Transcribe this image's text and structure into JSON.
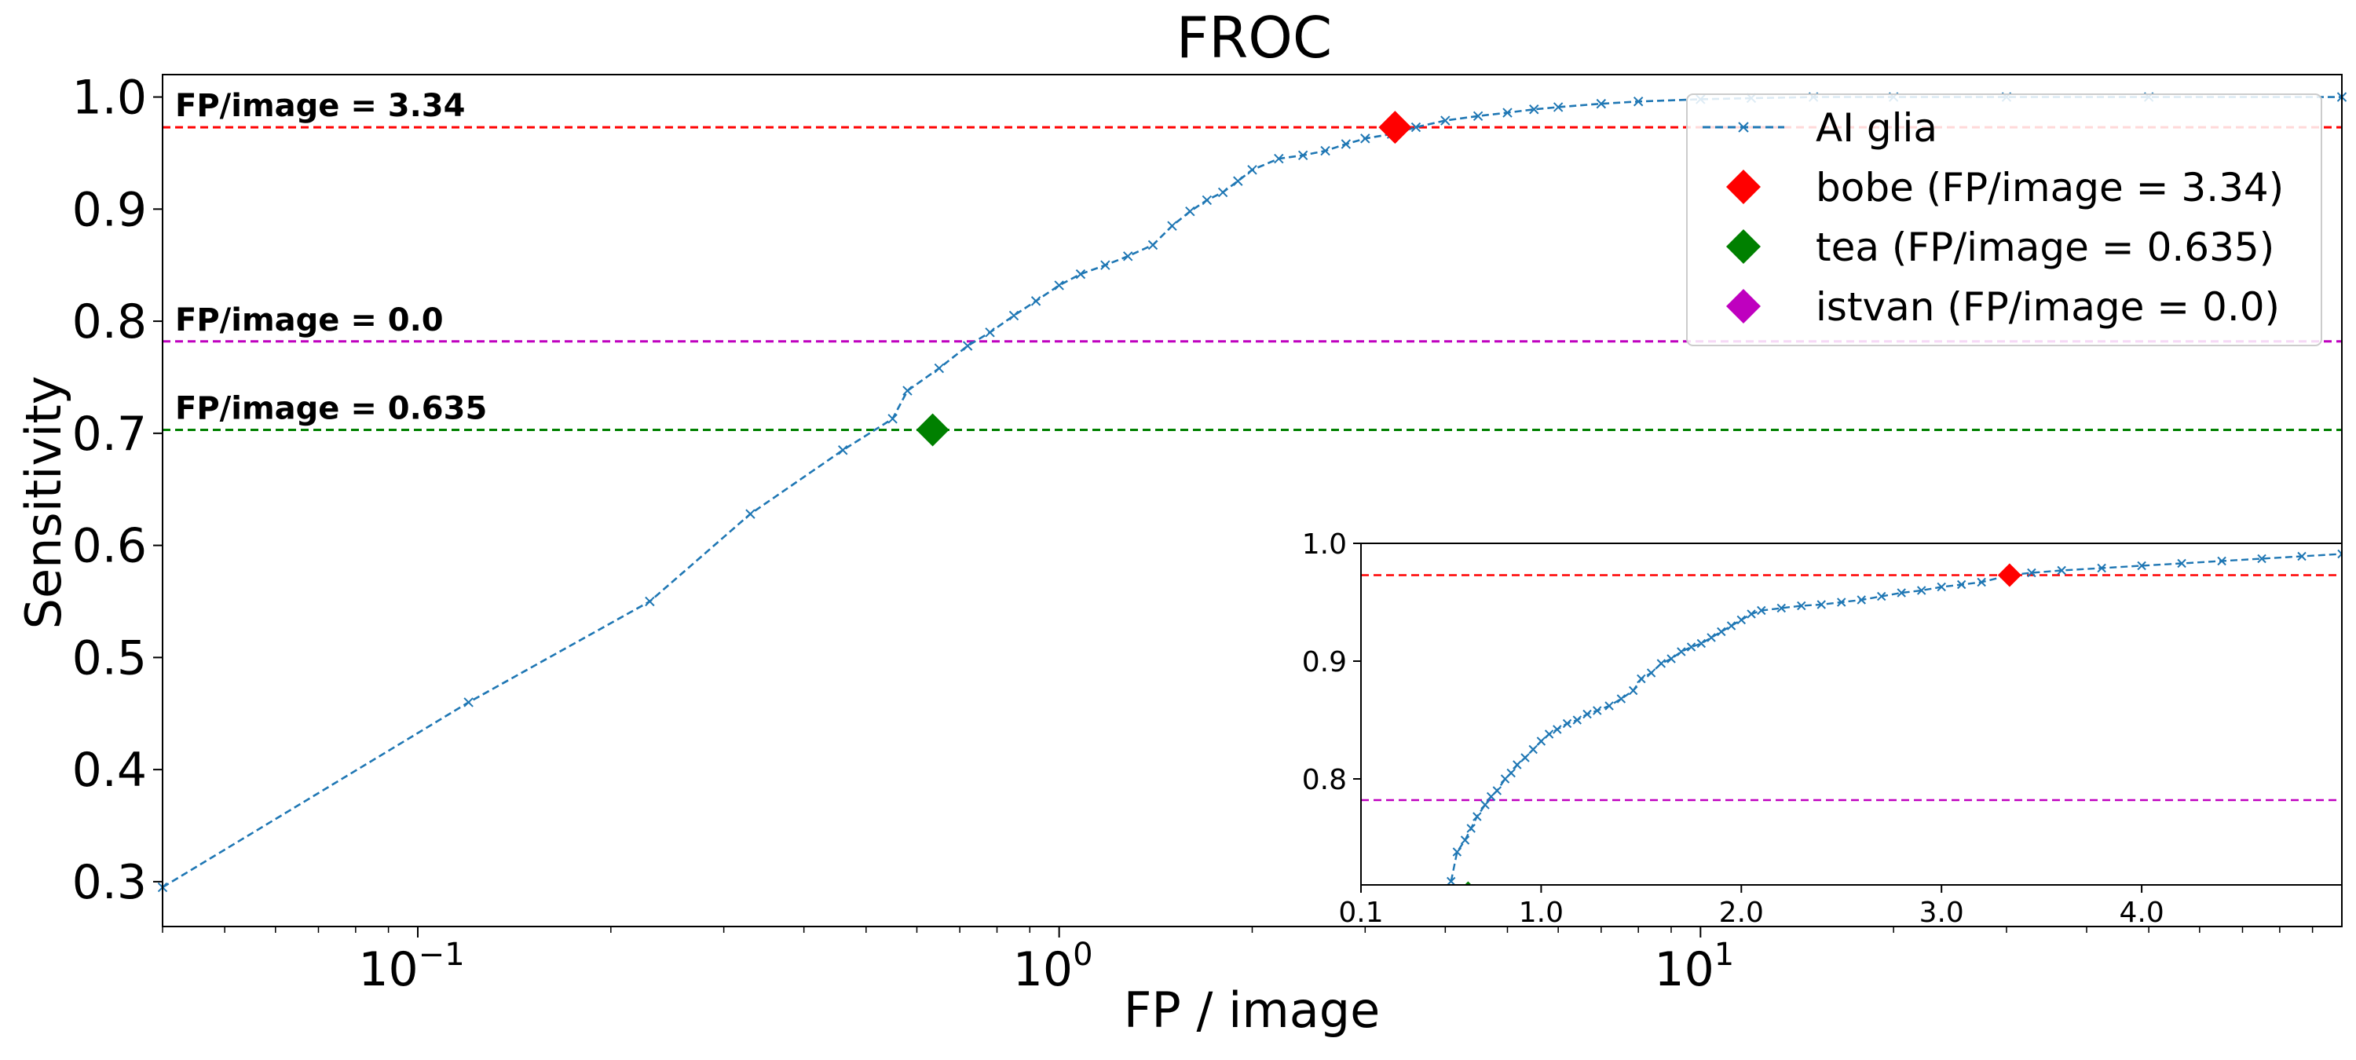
{
  "chart_data": [
    {
      "type": "line",
      "title": "FROC",
      "xlabel": "FP / image",
      "ylabel": "Sensitivity",
      "xscale": "log",
      "xlim": [
        0.04,
        100
      ],
      "ylim": [
        0.26,
        1.02
      ],
      "xticks": [
        {
          "value": 0.1,
          "base": "10",
          "exp": "−1"
        },
        {
          "value": 1,
          "base": "10",
          "exp": "0"
        },
        {
          "value": 10,
          "base": "10",
          "exp": "1"
        }
      ],
      "yticks": [
        0.3,
        0.4,
        0.5,
        0.6,
        0.7,
        0.8,
        0.9,
        1.0
      ],
      "ytick_labels": [
        "0.3",
        "0.4",
        "0.5",
        "0.6",
        "0.7",
        "0.8",
        "0.9",
        "1.0"
      ],
      "grid": false,
      "legend_position": "top-right",
      "series": [
        {
          "name": "AI glia",
          "color": "#1f77b4",
          "marker": "x",
          "linestyle": "dashed",
          "x": [
            0.04,
            0.12,
            0.23,
            0.33,
            0.46,
            0.55,
            0.58,
            0.65,
            0.72,
            0.78,
            0.85,
            0.92,
            1.0,
            1.08,
            1.18,
            1.28,
            1.4,
            1.5,
            1.6,
            1.7,
            1.8,
            1.9,
            2.0,
            2.2,
            2.4,
            2.6,
            2.8,
            3.0,
            3.3,
            3.6,
            4.0,
            4.5,
            5.0,
            5.5,
            6.0,
            7.0,
            8.0,
            10.0,
            12.0,
            15.0,
            20.0,
            30.0,
            50.0,
            100.0
          ],
          "y": [
            0.295,
            0.46,
            0.55,
            0.628,
            0.685,
            0.713,
            0.738,
            0.758,
            0.778,
            0.79,
            0.805,
            0.818,
            0.832,
            0.842,
            0.85,
            0.858,
            0.868,
            0.885,
            0.898,
            0.908,
            0.915,
            0.925,
            0.935,
            0.945,
            0.948,
            0.952,
            0.958,
            0.963,
            0.967,
            0.973,
            0.979,
            0.983,
            0.986,
            0.989,
            0.991,
            0.994,
            0.996,
            0.998,
            0.999,
            1.0,
            1.0,
            1.0,
            1.0,
            1.0
          ]
        }
      ],
      "points": [
        {
          "name": "bobe (FP/image = 3.34)",
          "label": "bobe",
          "x": 3.34,
          "y": 0.973,
          "color": "#ff0000"
        },
        {
          "name": "tea (FP/image = 0.635)",
          "label": "tea",
          "x": 0.635,
          "y": 0.703,
          "color": "#008000"
        },
        {
          "name": "istvan (FP/image = 0.0)",
          "label": "istvan",
          "x": 0.0,
          "y": 0.782,
          "color": "#bf00bf"
        }
      ],
      "reference_lines": [
        {
          "y": 0.973,
          "color": "#ff0000",
          "label": "FP/image = 3.34"
        },
        {
          "y": 0.782,
          "color": "#bf00bf",
          "label": "FP/image = 0.0"
        },
        {
          "y": 0.703,
          "color": "#008000",
          "label": "FP/image = 0.635"
        }
      ]
    },
    {
      "type": "line",
      "title": "",
      "xlabel": "",
      "ylabel": "",
      "xscale": "linear",
      "xlim": [
        0.1,
        5.0
      ],
      "ylim": [
        0.71,
        1.0
      ],
      "xticks": [
        0.1,
        1.0,
        2.0,
        3.0,
        4.0
      ],
      "xtick_labels": [
        "0.1",
        "1.0",
        "2.0",
        "3.0",
        "4.0"
      ],
      "yticks": [
        0.8,
        0.9,
        1.0
      ],
      "ytick_labels": [
        "0.8",
        "0.9",
        "1.0"
      ],
      "grid": false,
      "legend_position": "none",
      "series": [
        {
          "name": "AI glia",
          "color": "#1f77b4",
          "marker": "x",
          "linestyle": "dashed",
          "x": [
            0.55,
            0.58,
            0.62,
            0.65,
            0.68,
            0.72,
            0.75,
            0.78,
            0.82,
            0.85,
            0.88,
            0.92,
            0.96,
            1.0,
            1.04,
            1.08,
            1.13,
            1.18,
            1.23,
            1.28,
            1.34,
            1.4,
            1.46,
            1.5,
            1.55,
            1.6,
            1.65,
            1.7,
            1.75,
            1.8,
            1.85,
            1.9,
            1.95,
            2.0,
            2.05,
            2.1,
            2.2,
            2.3,
            2.4,
            2.5,
            2.6,
            2.7,
            2.8,
            2.9,
            3.0,
            3.1,
            3.2,
            3.34,
            3.45,
            3.6,
            3.8,
            4.0,
            4.2,
            4.4,
            4.6,
            4.8,
            5.0
          ],
          "y": [
            0.713,
            0.738,
            0.748,
            0.758,
            0.768,
            0.778,
            0.785,
            0.79,
            0.8,
            0.805,
            0.812,
            0.818,
            0.825,
            0.832,
            0.838,
            0.842,
            0.847,
            0.85,
            0.855,
            0.858,
            0.862,
            0.868,
            0.875,
            0.885,
            0.89,
            0.898,
            0.902,
            0.908,
            0.912,
            0.915,
            0.92,
            0.925,
            0.93,
            0.935,
            0.94,
            0.943,
            0.945,
            0.947,
            0.948,
            0.95,
            0.952,
            0.955,
            0.958,
            0.96,
            0.963,
            0.965,
            0.967,
            0.973,
            0.975,
            0.977,
            0.979,
            0.981,
            0.983,
            0.985,
            0.987,
            0.989,
            0.991
          ]
        }
      ],
      "points": [
        {
          "label": "bobe",
          "x": 3.34,
          "y": 0.973,
          "color": "#ff0000"
        },
        {
          "label": "tea",
          "x": 0.635,
          "y": 0.703,
          "color": "#008000"
        }
      ],
      "reference_lines": [
        {
          "y": 0.973,
          "color": "#ff0000"
        },
        {
          "y": 0.782,
          "color": "#bf00bf"
        }
      ]
    }
  ]
}
